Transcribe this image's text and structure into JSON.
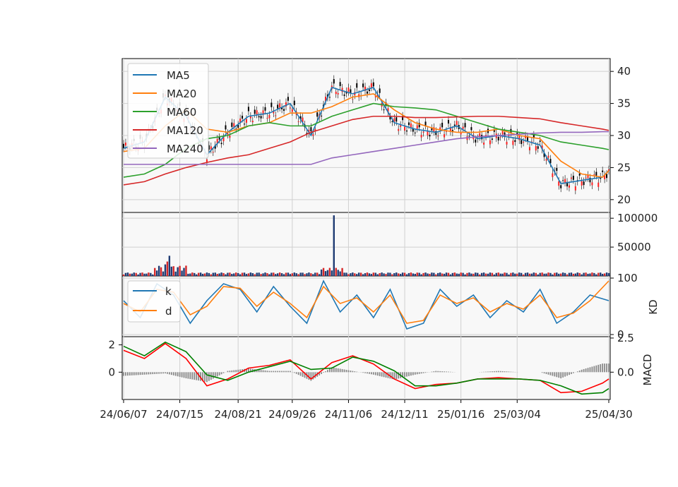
{
  "chart_data": [
    {
      "panel": "price",
      "type": "line",
      "ylim": [
        18,
        42
      ],
      "yticks": [
        "20",
        "25",
        "30",
        "35",
        "40"
      ],
      "grid": true,
      "legend_location": "upper-left",
      "legend": [
        "MA5",
        "MA20",
        "MA60",
        "MA120",
        "MA240"
      ],
      "colors": {
        "MA5": "#1f77b4",
        "MA20": "#ff7f0e",
        "MA60": "#2ca02c",
        "MA120": "#d62728",
        "MA240": "#9467bd"
      },
      "x_index": [
        0,
        10,
        20,
        30,
        40,
        50,
        60,
        70,
        80,
        90,
        100,
        110,
        120,
        130,
        140,
        150,
        160,
        170,
        180,
        190,
        200,
        210,
        220,
        230,
        233
      ],
      "series": [
        {
          "name": "MA5",
          "values": [
            28.0,
            29.0,
            36.0,
            33.0,
            27.0,
            30.5,
            33.0,
            33.5,
            35.0,
            30.0,
            37.5,
            36.5,
            37.5,
            32.0,
            31.0,
            30.5,
            31.5,
            29.5,
            30.0,
            29.5,
            28.5,
            22.5,
            23.0,
            23.5,
            24.5
          ]
        },
        {
          "name": "MA20",
          "values": [
            27.5,
            28.0,
            31.5,
            34.0,
            31.0,
            30.5,
            31.5,
            32.0,
            33.5,
            33.5,
            34.5,
            36.0,
            36.5,
            34.0,
            32.0,
            31.0,
            30.5,
            30.5,
            31.0,
            30.0,
            29.5,
            26.0,
            24.0,
            23.5,
            24.5
          ]
        },
        {
          "name": "MA60",
          "values": [
            23.5,
            24.0,
            25.5,
            28.0,
            29.5,
            30.0,
            31.5,
            32.0,
            31.5,
            31.5,
            33.0,
            34.0,
            35.0,
            34.5,
            34.3,
            34.0,
            33.0,
            32.0,
            31.0,
            30.5,
            30.0,
            29.0,
            28.5,
            28.0,
            27.8
          ]
        },
        {
          "name": "MA120",
          "values": [
            22.3,
            22.8,
            24.0,
            25.0,
            25.8,
            26.5,
            27.0,
            28.0,
            29.0,
            30.5,
            31.5,
            32.5,
            33.0,
            33.0,
            32.8,
            32.8,
            32.9,
            33.0,
            33.0,
            32.8,
            32.6,
            32.0,
            31.5,
            31.0,
            30.8
          ]
        },
        {
          "name": "MA240",
          "values": [
            25.5,
            25.5,
            25.5,
            25.5,
            25.5,
            25.5,
            25.5,
            25.5,
            25.5,
            25.5,
            26.5,
            27.0,
            27.5,
            28.0,
            28.5,
            29.0,
            29.5,
            29.8,
            30.0,
            30.2,
            30.4,
            30.5,
            30.5,
            30.6,
            30.6
          ]
        }
      ]
    },
    {
      "panel": "volume",
      "type": "bar",
      "ylim": [
        0,
        110000
      ],
      "yticks": [
        "50000",
        "100000"
      ],
      "spikes_index": [
        20,
        21,
        22,
        101
      ],
      "spikes_values": [
        20000,
        25000,
        35000,
        105000
      ]
    },
    {
      "panel": "KD",
      "type": "line",
      "ylabel": "KD",
      "ylim": [
        0,
        100
      ],
      "yticks": [
        "0",
        "100"
      ],
      "legend": [
        "k",
        "d"
      ],
      "colors": {
        "k": "#1f77b4",
        "d": "#ff7f0e"
      },
      "x_index": [
        0,
        8,
        16,
        24,
        32,
        40,
        48,
        56,
        64,
        72,
        80,
        88,
        96,
        104,
        112,
        120,
        128,
        136,
        144,
        152,
        160,
        168,
        176,
        184,
        192,
        200,
        208,
        216,
        224,
        233
      ],
      "series": [
        {
          "name": "k",
          "values": [
            60,
            30,
            90,
            70,
            20,
            60,
            90,
            80,
            40,
            85,
            50,
            20,
            95,
            40,
            70,
            30,
            80,
            10,
            20,
            80,
            50,
            70,
            30,
            60,
            40,
            80,
            20,
            40,
            70,
            60
          ]
        },
        {
          "name": "d",
          "values": [
            55,
            40,
            80,
            75,
            35,
            50,
            85,
            82,
            50,
            75,
            55,
            30,
            85,
            55,
            65,
            40,
            70,
            20,
            25,
            70,
            55,
            65,
            40,
            55,
            45,
            70,
            30,
            38,
            60,
            95
          ]
        }
      ]
    },
    {
      "panel": "MACD",
      "type": "line",
      "ylabel": "MACD",
      "ylim": [
        -2.0,
        2.6
      ],
      "yticks_left": [
        "0",
        "2"
      ],
      "yticks_right": [
        "0.0",
        "2.5"
      ],
      "colors": {
        "macd": "#ff0000",
        "signal": "#008000",
        "hist": "#888888"
      },
      "x_index": [
        0,
        10,
        20,
        30,
        40,
        50,
        60,
        70,
        80,
        90,
        100,
        110,
        120,
        130,
        140,
        150,
        160,
        170,
        180,
        190,
        200,
        210,
        220,
        230,
        233
      ],
      "series": [
        {
          "name": "macd",
          "values": [
            1.6,
            1.0,
            2.1,
            1.0,
            -1.0,
            -0.5,
            0.3,
            0.5,
            0.9,
            -0.5,
            0.7,
            1.2,
            0.6,
            -0.5,
            -1.2,
            -0.9,
            -0.8,
            -0.5,
            -0.4,
            -0.5,
            -0.6,
            -1.5,
            -1.4,
            -0.8,
            -0.5
          ]
        },
        {
          "name": "signal",
          "values": [
            1.9,
            1.2,
            2.2,
            1.5,
            -0.2,
            -0.6,
            0.0,
            0.4,
            0.8,
            0.2,
            0.3,
            1.1,
            0.8,
            0.1,
            -1.0,
            -1.0,
            -0.8,
            -0.5,
            -0.5,
            -0.5,
            -0.6,
            -1.0,
            -1.6,
            -1.5,
            -1.2
          ]
        }
      ]
    }
  ],
  "x_axis": {
    "count": 234,
    "ticks": [
      {
        "index": 0,
        "label": "24/06/07"
      },
      {
        "index": 27,
        "label": "24/07/15"
      },
      {
        "index": 55,
        "label": "24/08/21"
      },
      {
        "index": 81,
        "label": "24/09/26"
      },
      {
        "index": 108,
        "label": "24/11/06"
      },
      {
        "index": 135,
        "label": "24/12/11"
      },
      {
        "index": 162,
        "label": "25/01/16"
      },
      {
        "index": 189,
        "label": "25/03/04"
      },
      {
        "index": 233,
        "label": "25/04/30"
      }
    ]
  }
}
